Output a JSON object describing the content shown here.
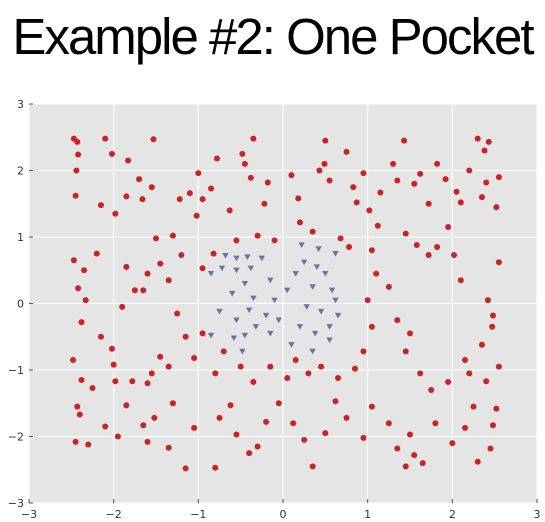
{
  "slide": {
    "title": "Example #2: One Pocket"
  },
  "colors": {
    "background": "#e5e5e5",
    "grid": "#ffffff",
    "outer_class": "#cc2222",
    "inner_class": "#6b70a8"
  },
  "chart_data": {
    "type": "scatter",
    "title": "",
    "xlabel": "",
    "ylabel": "",
    "xlim": [
      -3,
      3
    ],
    "ylim": [
      -3,
      3
    ],
    "xticks": [
      -3,
      -2,
      -1,
      0,
      1,
      2,
      3
    ],
    "yticks": [
      -3,
      -2,
      -1,
      0,
      1,
      2,
      3
    ],
    "xtick_labels": [
      "−3",
      "−2",
      "−1",
      "0",
      "1",
      "2",
      "3"
    ],
    "ytick_labels": [
      "−3",
      "−2",
      "−1",
      "0",
      "1",
      "2",
      "3"
    ],
    "grid": true,
    "series": [
      {
        "marker": "circle",
        "color": "#cc2222",
        "points": [
          [
            -2.47,
            2.48
          ],
          [
            -2.43,
            2.43
          ],
          [
            -2.42,
            2.24
          ],
          [
            -2.1,
            2.48
          ],
          [
            -1.53,
            2.47
          ],
          [
            -1.83,
            2.15
          ],
          [
            -2.02,
            2.25
          ],
          [
            -2.44,
            2.0
          ],
          [
            -2.45,
            1.62
          ],
          [
            -1.98,
            1.35
          ],
          [
            -2.15,
            1.48
          ],
          [
            -1.7,
            1.87
          ],
          [
            -1.55,
            1.75
          ],
          [
            -1.85,
            1.61
          ],
          [
            -1.66,
            1.57
          ],
          [
            -1.22,
            1.57
          ],
          [
            -1.1,
            1.66
          ],
          [
            -1.0,
            1.96
          ],
          [
            -1.02,
            1.32
          ],
          [
            -0.95,
            1.57
          ],
          [
            -0.85,
            1.73
          ],
          [
            -0.63,
            1.4
          ],
          [
            -0.78,
            2.18
          ],
          [
            -0.48,
            2.25
          ],
          [
            -0.45,
            2.1
          ],
          [
            -0.38,
            1.89
          ],
          [
            -0.35,
            2.48
          ],
          [
            -0.22,
            1.5
          ],
          [
            -0.18,
            1.82
          ],
          [
            0.1,
            1.93
          ],
          [
            0.18,
            1.58
          ],
          [
            0.43,
            2.0
          ],
          [
            0.55,
            1.85
          ],
          [
            0.49,
            2.1
          ],
          [
            0.5,
            2.45
          ],
          [
            0.75,
            2.28
          ],
          [
            0.83,
            1.75
          ],
          [
            0.95,
            1.96
          ],
          [
            1.02,
            1.4
          ],
          [
            0.87,
            1.52
          ],
          [
            1.15,
            1.67
          ],
          [
            1.3,
            2.1
          ],
          [
            1.43,
            2.45
          ],
          [
            1.35,
            1.85
          ],
          [
            1.55,
            1.8
          ],
          [
            1.72,
            1.5
          ],
          [
            1.62,
            1.95
          ],
          [
            1.82,
            2.1
          ],
          [
            1.92,
            1.87
          ],
          [
            1.95,
            1.15
          ],
          [
            2.05,
            1.68
          ],
          [
            2.1,
            1.52
          ],
          [
            2.3,
            2.48
          ],
          [
            2.38,
            2.3
          ],
          [
            2.43,
            2.43
          ],
          [
            2.2,
            2.0
          ],
          [
            2.35,
            1.6
          ],
          [
            2.52,
            1.45
          ],
          [
            2.4,
            1.82
          ],
          [
            2.55,
            1.9
          ],
          [
            -1.5,
            0.98
          ],
          [
            -1.3,
            1.02
          ],
          [
            -1.2,
            0.73
          ],
          [
            -0.95,
            0.53
          ],
          [
            -0.82,
            0.75
          ],
          [
            -0.55,
            0.95
          ],
          [
            -0.3,
            1.02
          ],
          [
            -0.1,
            0.95
          ],
          [
            0.2,
            1.22
          ],
          [
            0.35,
            1.08
          ],
          [
            0.68,
            0.98
          ],
          [
            0.78,
            0.85
          ],
          [
            1.05,
            0.8
          ],
          [
            1.12,
            1.17
          ],
          [
            1.45,
            1.05
          ],
          [
            1.58,
            0.88
          ],
          [
            1.72,
            0.73
          ],
          [
            1.82,
            0.85
          ],
          [
            2.02,
            0.73
          ],
          [
            2.1,
            0.35
          ],
          [
            2.55,
            0.62
          ],
          [
            2.48,
            -0.18
          ],
          [
            2.42,
            0.05
          ],
          [
            -2.47,
            0.65
          ],
          [
            -2.35,
            0.5
          ],
          [
            -2.42,
            0.23
          ],
          [
            -2.33,
            0.05
          ],
          [
            -2.38,
            -0.28
          ],
          [
            -2.15,
            -0.5
          ],
          [
            -2.02,
            -0.68
          ],
          [
            -2.0,
            -0.92
          ],
          [
            -1.98,
            -1.17
          ],
          [
            -2.48,
            -0.85
          ],
          [
            -2.38,
            -1.15
          ],
          [
            -2.25,
            -1.27
          ],
          [
            -2.43,
            -1.55
          ],
          [
            -2.4,
            -1.67
          ],
          [
            -2.45,
            -2.08
          ],
          [
            -2.1,
            -1.85
          ],
          [
            -2.3,
            -2.12
          ],
          [
            -1.95,
            -2.0
          ],
          [
            -1.85,
            -1.53
          ],
          [
            -1.78,
            -1.17
          ],
          [
            -1.6,
            -1.2
          ],
          [
            -1.55,
            -1.05
          ],
          [
            -1.35,
            -0.95
          ],
          [
            -1.45,
            -0.8
          ],
          [
            -1.3,
            -1.5
          ],
          [
            -1.52,
            -1.72
          ],
          [
            -1.65,
            -1.83
          ],
          [
            -1.6,
            -2.08
          ],
          [
            -1.35,
            -2.17
          ],
          [
            -1.15,
            -2.48
          ],
          [
            -1.05,
            -1.87
          ],
          [
            -0.8,
            -2.47
          ],
          [
            -0.75,
            -1.72
          ],
          [
            -0.62,
            -1.53
          ],
          [
            -0.55,
            -1.97
          ],
          [
            -0.4,
            -2.25
          ],
          [
            -0.3,
            -2.15
          ],
          [
            -0.2,
            -1.78
          ],
          [
            -0.05,
            -1.5
          ],
          [
            0.12,
            -1.8
          ],
          [
            0.25,
            -2.05
          ],
          [
            0.35,
            -2.45
          ],
          [
            0.5,
            -1.95
          ],
          [
            0.62,
            -1.47
          ],
          [
            0.75,
            -1.72
          ],
          [
            0.95,
            -2.02
          ],
          [
            1.05,
            -1.55
          ],
          [
            1.25,
            -1.8
          ],
          [
            1.35,
            -2.18
          ],
          [
            1.5,
            -1.97
          ],
          [
            1.55,
            -2.28
          ],
          [
            1.45,
            -2.45
          ],
          [
            1.65,
            -2.4
          ],
          [
            1.8,
            -1.8
          ],
          [
            2.0,
            -2.1
          ],
          [
            2.15,
            -1.87
          ],
          [
            2.25,
            -1.55
          ],
          [
            2.3,
            -2.38
          ],
          [
            2.45,
            -2.18
          ],
          [
            2.48,
            -1.83
          ],
          [
            2.52,
            -1.58
          ],
          [
            2.4,
            -1.17
          ],
          [
            2.55,
            -0.95
          ],
          [
            2.35,
            -0.62
          ],
          [
            2.47,
            -0.35
          ],
          [
            2.15,
            -0.85
          ],
          [
            2.2,
            -1.05
          ],
          [
            1.95,
            -1.18
          ],
          [
            1.75,
            -1.3
          ],
          [
            1.62,
            -1.05
          ],
          [
            1.45,
            -0.72
          ],
          [
            1.5,
            -0.45
          ],
          [
            1.35,
            -0.25
          ],
          [
            1.25,
            0.25
          ],
          [
            1.1,
            0.45
          ],
          [
            1.0,
            0.05
          ],
          [
            1.05,
            -0.35
          ],
          [
            0.95,
            -0.72
          ],
          [
            0.85,
            -0.98
          ],
          [
            0.65,
            -1.12
          ],
          [
            0.45,
            -0.95
          ],
          [
            0.3,
            -1.05
          ],
          [
            0.15,
            -0.85
          ],
          [
            0.05,
            -1.12
          ],
          [
            -0.15,
            -0.95
          ],
          [
            -0.35,
            -1.18
          ],
          [
            -0.5,
            -0.95
          ],
          [
            -0.7,
            -0.72
          ],
          [
            -0.8,
            -1.05
          ],
          [
            -0.95,
            -0.45
          ],
          [
            -1.05,
            -0.82
          ],
          [
            -1.15,
            -0.5
          ],
          [
            -1.25,
            -0.15
          ],
          [
            -1.35,
            0.35
          ],
          [
            -1.45,
            0.6
          ],
          [
            -1.6,
            0.45
          ],
          [
            -1.75,
            0.2
          ],
          [
            -1.9,
            -0.05
          ],
          [
            -1.85,
            0.55
          ],
          [
            -1.65,
            0.2
          ],
          [
            -2.2,
            0.75
          ]
        ]
      },
      {
        "marker": "triangle-down",
        "color": "#6b70a8",
        "points": [
          [
            -0.68,
            0.72
          ],
          [
            -0.55,
            0.68
          ],
          [
            -0.42,
            0.7
          ],
          [
            -0.25,
            0.68
          ],
          [
            -0.38,
            0.53
          ],
          [
            -0.55,
            0.5
          ],
          [
            -0.72,
            0.53
          ],
          [
            -0.85,
            0.45
          ],
          [
            -0.45,
            0.3
          ],
          [
            -0.6,
            0.15
          ],
          [
            -0.35,
            0.08
          ],
          [
            -0.75,
            -0.12
          ],
          [
            -0.55,
            -0.25
          ],
          [
            -0.4,
            -0.1
          ],
          [
            -0.15,
            0.35
          ],
          [
            -0.1,
            0.05
          ],
          [
            -0.2,
            -0.18
          ],
          [
            -0.45,
            -0.48
          ],
          [
            -0.32,
            -0.35
          ],
          [
            -0.58,
            -0.52
          ],
          [
            -0.85,
            -0.48
          ],
          [
            -0.48,
            -0.72
          ],
          [
            -0.15,
            -0.45
          ],
          [
            -0.05,
            -0.25
          ],
          [
            0.05,
            0.2
          ],
          [
            0.15,
            0.45
          ],
          [
            0.25,
            0.62
          ],
          [
            0.22,
            0.88
          ],
          [
            0.4,
            0.55
          ],
          [
            0.42,
            0.82
          ],
          [
            0.5,
            0.45
          ],
          [
            0.58,
            0.2
          ],
          [
            0.62,
            0.75
          ],
          [
            0.35,
            0.25
          ],
          [
            0.28,
            -0.05
          ],
          [
            0.45,
            -0.12
          ],
          [
            0.62,
            0.05
          ],
          [
            0.55,
            -0.35
          ],
          [
            0.38,
            -0.45
          ],
          [
            0.2,
            -0.35
          ],
          [
            0.1,
            -0.62
          ],
          [
            0.35,
            -0.72
          ],
          [
            0.55,
            -0.55
          ],
          [
            0.65,
            -0.18
          ]
        ]
      }
    ]
  }
}
